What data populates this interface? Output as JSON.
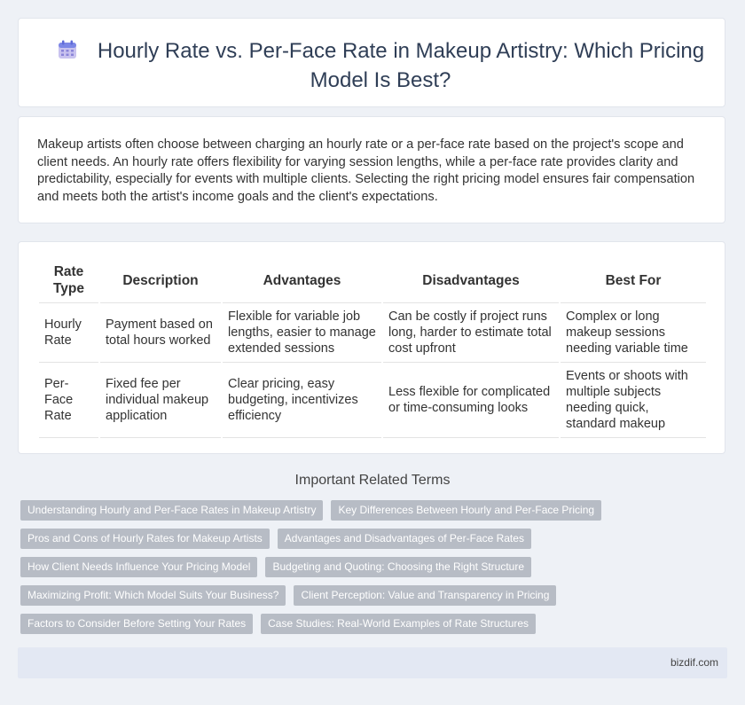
{
  "header": {
    "title": "Hourly Rate vs. Per-Face Rate in Makeup Artistry: Which Pricing Model Is Best?",
    "icon": "calendar-icon"
  },
  "intro": {
    "text": "Makeup artists often choose between charging an hourly rate or a per-face rate based on the project's scope and client needs. An hourly rate offers flexibility for varying session lengths, while a per-face rate provides clarity and predictability, especially for events with multiple clients. Selecting the right pricing model ensures fair compensation and meets both the artist's income goals and the client's expectations."
  },
  "table": {
    "headers": [
      "Rate Type",
      "Description",
      "Advantages",
      "Disadvantages",
      "Best For"
    ],
    "rows": [
      [
        "Hourly Rate",
        "Payment based on total hours worked",
        "Flexible for variable job lengths, easier to manage extended sessions",
        "Can be costly if project runs long, harder to estimate total cost upfront",
        "Complex or long makeup sessions needing variable time"
      ],
      [
        "Per-Face Rate",
        "Fixed fee per individual makeup application",
        "Clear pricing, easy budgeting, incentivizes efficiency",
        "Less flexible for complicated or time-consuming looks",
        "Events or shoots with multiple subjects needing quick, standard makeup"
      ]
    ]
  },
  "related": {
    "title": "Important Related Terms",
    "tags": [
      [
        "Understanding Hourly and Per-Face Rates in Makeup Artistry",
        "Key Differences Between Hourly and Per-Face Pricing"
      ],
      [
        "Pros and Cons of Hourly Rates for Makeup Artists",
        "Advantages and Disadvantages of Per-Face Rates"
      ],
      [
        "How Client Needs Influence Your Pricing Model",
        "Budgeting and Quoting: Choosing the Right Structure"
      ],
      [
        "Maximizing Profit: Which Model Suits Your Business?",
        "Client Perception: Value and Transparency in Pricing"
      ],
      [
        "Factors to Consider Before Setting Your Rates",
        "Case Studies: Real-World Examples of Rate Structures"
      ]
    ]
  },
  "footer": {
    "brand": "bizdif.com"
  },
  "colors": {
    "tag_bg": "#b7bcc5",
    "page_bg": "#eef1f6",
    "title": "#2f3e56"
  }
}
